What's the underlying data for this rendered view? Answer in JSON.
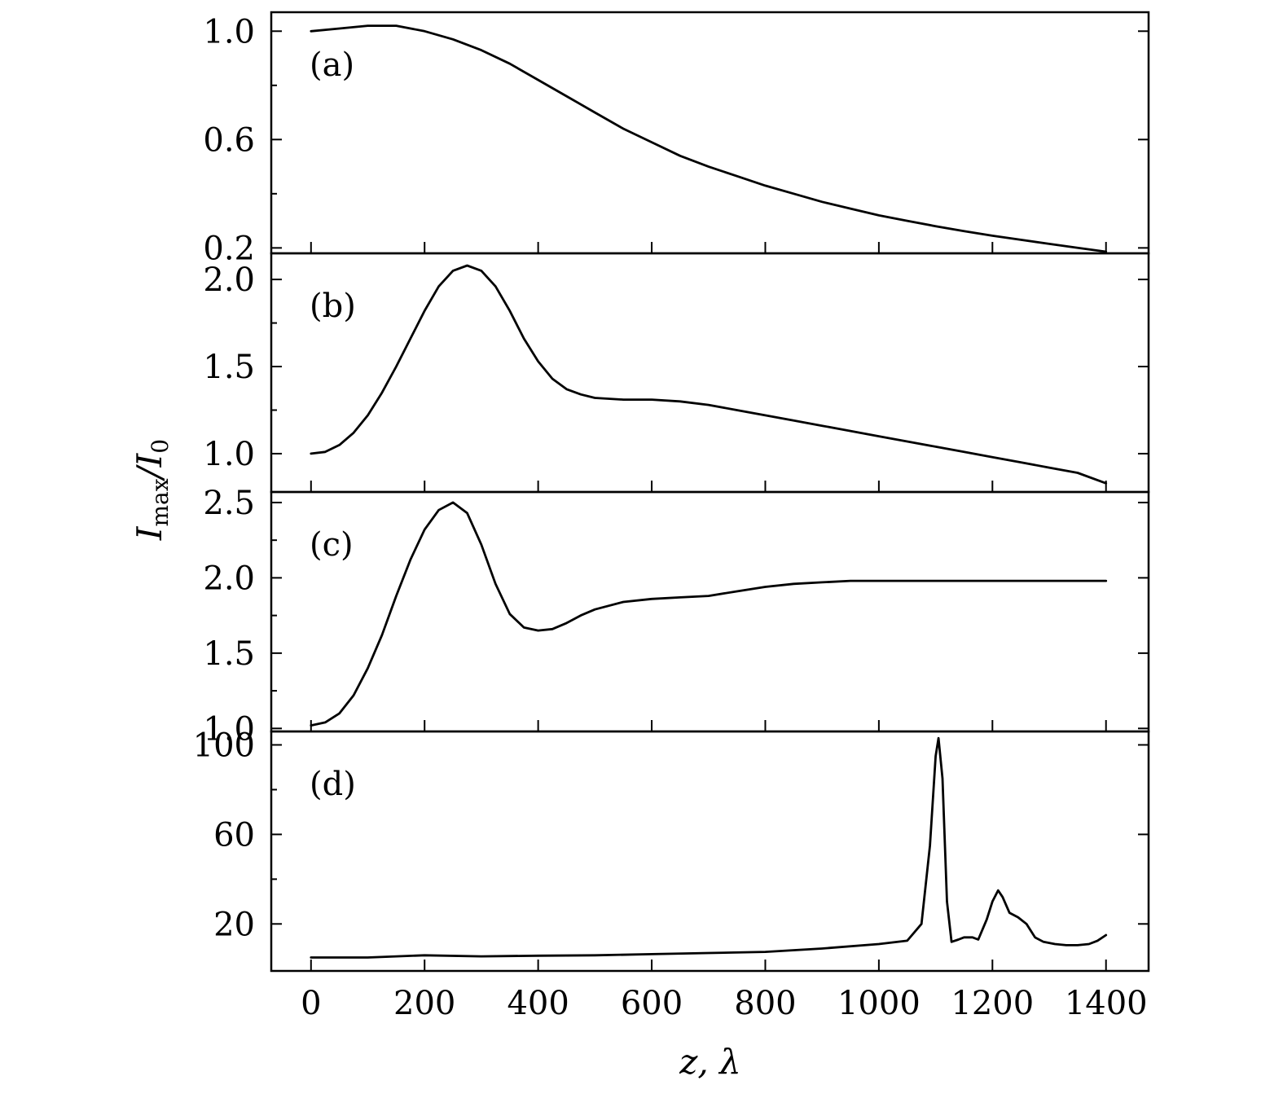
{
  "chart_data": [
    {
      "type": "line",
      "panel": "(a)",
      "ylim": [
        0.18,
        1.07
      ],
      "yticks": [
        "1.0",
        "0.6",
        "0.2"
      ],
      "ytick_values": [
        1.0,
        0.6,
        0.2
      ],
      "yminor": [
        0.8,
        0.4
      ],
      "x": [
        0,
        50,
        100,
        150,
        200,
        250,
        300,
        350,
        400,
        450,
        500,
        550,
        600,
        650,
        700,
        750,
        800,
        850,
        900,
        950,
        1000,
        1050,
        1100,
        1150,
        1200,
        1250,
        1300,
        1350,
        1400
      ],
      "y": [
        1.0,
        1.01,
        1.02,
        1.02,
        1.0,
        0.97,
        0.93,
        0.88,
        0.82,
        0.76,
        0.7,
        0.64,
        0.59,
        0.54,
        0.5,
        0.465,
        0.43,
        0.4,
        0.37,
        0.345,
        0.32,
        0.3,
        0.28,
        0.262,
        0.245,
        0.23,
        0.215,
        0.2,
        0.186
      ]
    },
    {
      "type": "line",
      "panel": "(b)",
      "ylim": [
        0.78,
        2.15
      ],
      "yticks": [
        "2.0",
        "1.5",
        "1.0"
      ],
      "ytick_values": [
        2.0,
        1.5,
        1.0
      ],
      "yminor": [
        1.75,
        1.25
      ],
      "x": [
        0,
        25,
        50,
        75,
        100,
        125,
        150,
        175,
        200,
        225,
        250,
        275,
        300,
        325,
        350,
        375,
        400,
        425,
        450,
        475,
        500,
        550,
        600,
        650,
        700,
        750,
        800,
        850,
        900,
        950,
        1000,
        1050,
        1100,
        1150,
        1200,
        1250,
        1300,
        1350,
        1400
      ],
      "y": [
        1.0,
        1.01,
        1.05,
        1.12,
        1.22,
        1.35,
        1.5,
        1.66,
        1.82,
        1.96,
        2.05,
        2.08,
        2.05,
        1.96,
        1.82,
        1.66,
        1.53,
        1.43,
        1.37,
        1.34,
        1.32,
        1.31,
        1.31,
        1.3,
        1.28,
        1.25,
        1.22,
        1.19,
        1.16,
        1.13,
        1.1,
        1.07,
        1.04,
        1.01,
        0.98,
        0.95,
        0.92,
        0.89,
        0.83
      ]
    },
    {
      "type": "line",
      "panel": "(c)",
      "ylim": [
        0.98,
        2.57
      ],
      "yticks": [
        "2.5",
        "2.0",
        "1.5",
        "1.0"
      ],
      "ytick_values": [
        2.5,
        2.0,
        1.5,
        1.0
      ],
      "yminor": [
        2.25,
        1.75,
        1.25
      ],
      "x": [
        0,
        25,
        50,
        75,
        100,
        125,
        150,
        175,
        200,
        225,
        250,
        275,
        300,
        325,
        350,
        375,
        400,
        425,
        450,
        475,
        500,
        550,
        600,
        650,
        700,
        750,
        800,
        850,
        900,
        950,
        1000,
        1050,
        1100,
        1150,
        1200,
        1250,
        1300,
        1350,
        1400
      ],
      "y": [
        1.02,
        1.04,
        1.1,
        1.22,
        1.4,
        1.62,
        1.88,
        2.12,
        2.32,
        2.45,
        2.5,
        2.43,
        2.22,
        1.96,
        1.76,
        1.67,
        1.65,
        1.66,
        1.7,
        1.75,
        1.79,
        1.84,
        1.86,
        1.87,
        1.88,
        1.91,
        1.94,
        1.96,
        1.97,
        1.98,
        1.98,
        1.98,
        1.98,
        1.98,
        1.98,
        1.98,
        1.98,
        1.98,
        1.98
      ]
    },
    {
      "type": "line",
      "panel": "(d)",
      "ylim": [
        -1,
        106
      ],
      "yticks": [
        "100",
        "60",
        "20"
      ],
      "ytick_values": [
        100,
        60,
        20
      ],
      "yminor": [
        80,
        40
      ],
      "x": [
        0,
        100,
        200,
        300,
        400,
        500,
        600,
        700,
        800,
        900,
        1000,
        1050,
        1075,
        1090,
        1100,
        1105,
        1112,
        1120,
        1128,
        1140,
        1150,
        1165,
        1175,
        1190,
        1200,
        1210,
        1218,
        1230,
        1245,
        1260,
        1275,
        1290,
        1310,
        1330,
        1350,
        1370,
        1385,
        1400
      ],
      "y": [
        5,
        5,
        6,
        5.5,
        5.8,
        6,
        6.5,
        7,
        7.5,
        9,
        11,
        12.5,
        20,
        55,
        95,
        103,
        85,
        30,
        12,
        13,
        14,
        14,
        13,
        22,
        30,
        35,
        32,
        25,
        23,
        20,
        14,
        12,
        11,
        10.5,
        10.5,
        11,
        12.5,
        15
      ]
    }
  ],
  "shared": {
    "xlim": [
      -70,
      1475
    ],
    "xticks": [
      0,
      200,
      400,
      600,
      800,
      1000,
      1200,
      1400
    ],
    "xtick_labels": [
      "0",
      "200",
      "400",
      "600",
      "800",
      "1000",
      "1200",
      "1400"
    ],
    "xlabel": "z, λ",
    "ylabel_main": "I",
    "ylabel_sub1": "max",
    "ylabel_mid": "/I",
    "ylabel_sub2": "0",
    "grid": false
  }
}
